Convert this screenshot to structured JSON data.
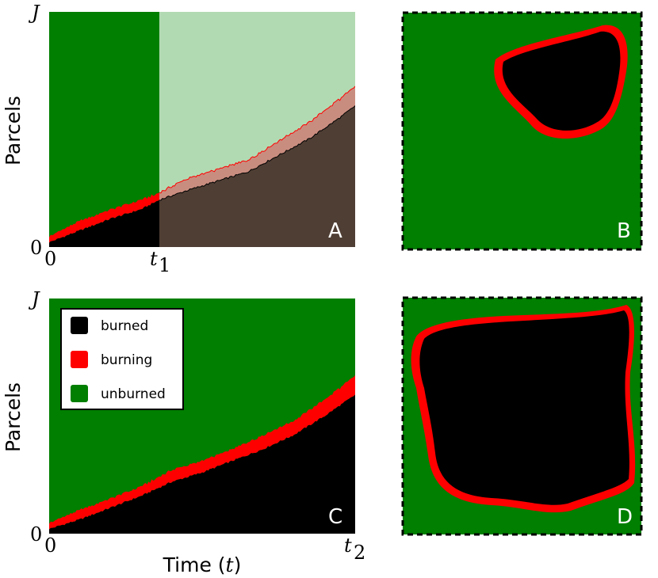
{
  "colors": {
    "burned": "#000000",
    "burning": "#ff0000",
    "unburned": "#007f00",
    "unburned_light": "#b2dab2",
    "burned_shaded": "#4f3e34",
    "burning_shaded": "#c98d7f",
    "map_border": "#000000"
  },
  "panels": {
    "A": {
      "letter": "A",
      "ylabel": "Parcels",
      "ytick_top": "J",
      "ytick_bottom": "0",
      "xtick_left": "0",
      "xtick_marker": "t",
      "xtick_marker_sub": "1"
    },
    "B": {
      "letter": "B"
    },
    "C": {
      "letter": "C",
      "ylabel": "Parcels",
      "xlabel_text": "Time (",
      "xlabel_var": "t",
      "xlabel_close": ")",
      "ytick_top": "J",
      "ytick_bottom": "0",
      "xtick_left": "0",
      "xtick_right": "t",
      "xtick_right_sub": "2"
    },
    "D": {
      "letter": "D"
    }
  },
  "legend": [
    {
      "label": "burned",
      "color": "#000000"
    },
    {
      "label": "burning",
      "color": "#ff0000"
    },
    {
      "label": "unburned",
      "color": "#007f00"
    }
  ],
  "chart_data": [
    {
      "panel": "A",
      "type": "area",
      "ylabel": "Parcels",
      "ylim": [
        0,
        1
      ],
      "xlim": [
        0,
        1
      ],
      "t1": 0.36,
      "note_shading": "region after t1 drawn in lighter shades",
      "series": [
        {
          "name": "burned",
          "x": [
            0,
            0.1,
            0.2,
            0.3,
            0.36,
            0.45,
            0.55,
            0.65,
            0.75,
            0.85,
            0.95,
            1.0
          ],
          "y": [
            0.02,
            0.07,
            0.12,
            0.16,
            0.2,
            0.24,
            0.28,
            0.32,
            0.39,
            0.46,
            0.55,
            0.6
          ]
        },
        {
          "name": "burning",
          "x": [
            0,
            0.1,
            0.2,
            0.3,
            0.36,
            0.45,
            0.55,
            0.65,
            0.75,
            0.85,
            0.95,
            1.0
          ],
          "y": [
            0.025,
            0.04,
            0.04,
            0.04,
            0.03,
            0.05,
            0.05,
            0.05,
            0.06,
            0.07,
            0.08,
            0.08
          ]
        }
      ]
    },
    {
      "panel": "C",
      "type": "area",
      "ylabel": "Parcels",
      "ylim": [
        0,
        1
      ],
      "xlim": [
        0,
        1
      ],
      "series": [
        {
          "name": "burned",
          "x": [
            0,
            0.1,
            0.2,
            0.3,
            0.4,
            0.5,
            0.6,
            0.7,
            0.8,
            0.9,
            1.0
          ],
          "y": [
            0.02,
            0.06,
            0.11,
            0.16,
            0.22,
            0.26,
            0.31,
            0.36,
            0.42,
            0.5,
            0.59
          ]
        },
        {
          "name": "burning",
          "x": [
            0,
            0.1,
            0.2,
            0.3,
            0.4,
            0.5,
            0.6,
            0.7,
            0.8,
            0.9,
            1.0
          ],
          "y": [
            0.025,
            0.04,
            0.04,
            0.04,
            0.05,
            0.05,
            0.05,
            0.06,
            0.06,
            0.07,
            0.08
          ]
        }
      ]
    }
  ]
}
